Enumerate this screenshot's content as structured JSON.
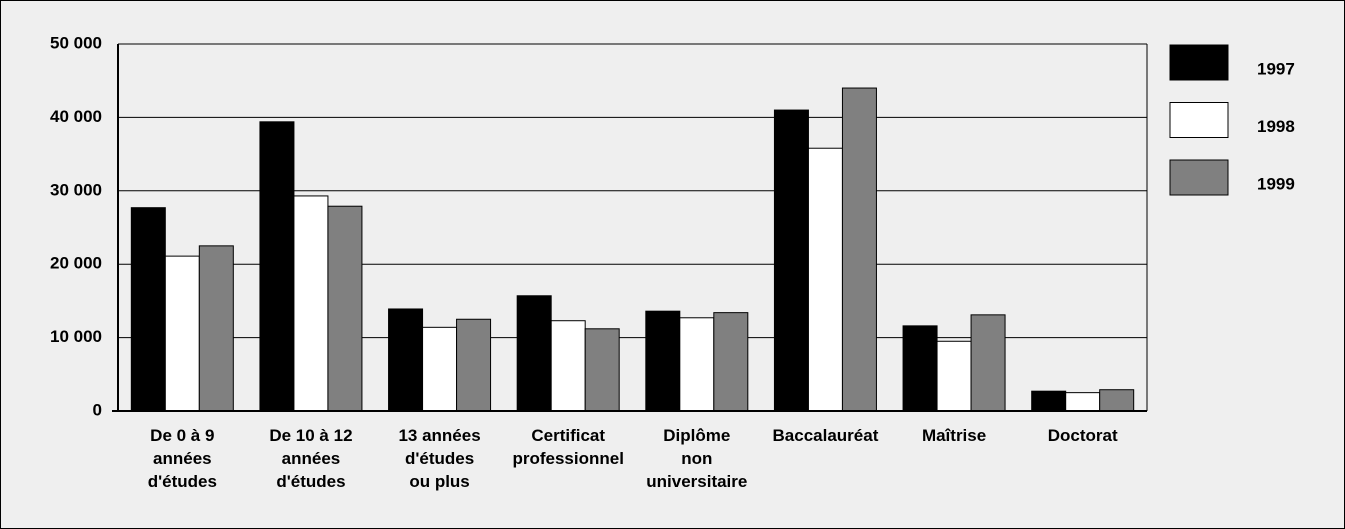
{
  "chart_data": {
    "type": "bar",
    "categories": [
      "De 0 à 9\nannées\nd'études",
      "De 10 à 12\nannées\nd'études",
      "13 années\nd'études\nou plus",
      "Certificat\nprofessionnel",
      "Diplôme\nnon\nuniversitaire",
      "Baccalauréat",
      "Maîtrise",
      "Doctorat"
    ],
    "series": [
      {
        "name": "1997",
        "color": "#000000",
        "values": [
          27700,
          39400,
          13900,
          15700,
          13600,
          41000,
          11600,
          2700
        ]
      },
      {
        "name": "1998",
        "color": "#ffffff",
        "values": [
          21100,
          29300,
          11400,
          12300,
          12700,
          35800,
          9500,
          2500
        ]
      },
      {
        "name": "1999",
        "color": "#808080",
        "values": [
          22500,
          27900,
          12500,
          11200,
          13400,
          44000,
          13100,
          2900
        ]
      }
    ],
    "ylim": [
      0,
      50000
    ],
    "yticks": [
      0,
      {
        "value": 10000,
        "label": "10 000"
      },
      {
        "value": 20000,
        "label": "20 000"
      },
      {
        "value": 30000,
        "label": "30 000"
      },
      {
        "value": 40000,
        "label": "40 000"
      },
      {
        "value": 50000,
        "label": "50 000"
      }
    ],
    "grid": true,
    "legend": "right"
  }
}
